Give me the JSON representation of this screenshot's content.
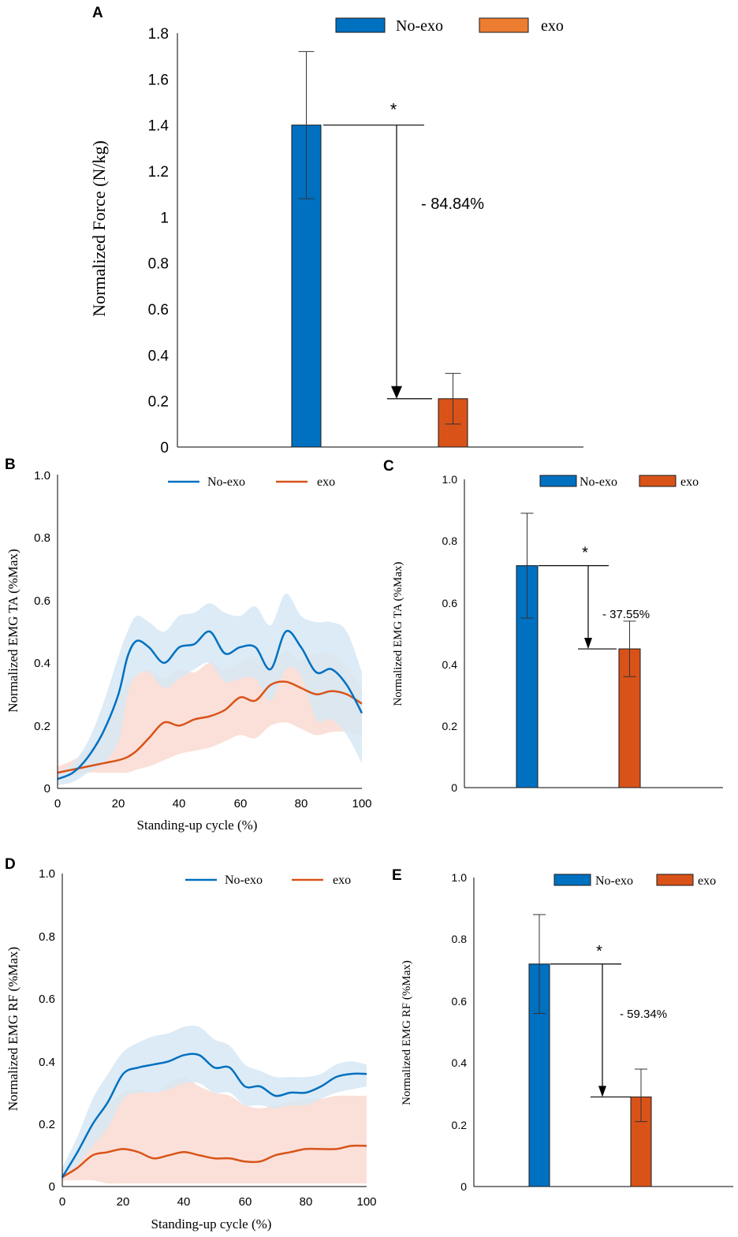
{
  "colors": {
    "no_exo": "#0070C0",
    "exo": "#D95319",
    "no_exo_band": "#d6e8f5",
    "exo_band": "#f9ddd4",
    "overlap_band": "#d7d2da"
  },
  "chart_data": [
    {
      "id": "A",
      "type": "bar",
      "panel_label": "A",
      "ylabel": "Normalized Force (N/kg)",
      "ylim": [
        0,
        1.8
      ],
      "yticks": [
        "0",
        "0.2",
        "0.4",
        "0.6",
        "0.8",
        "1",
        "1.2",
        "1.4",
        "1.6",
        "1.8"
      ],
      "series": [
        {
          "name": "No-exo",
          "value": 1.4,
          "err_low": 1.08,
          "err_high": 1.72
        },
        {
          "name": "exo",
          "value": 0.21,
          "err_low": 0.1,
          "err_high": 0.32
        }
      ],
      "significance": "*",
      "change": "- 84.84%"
    },
    {
      "id": "B",
      "type": "line",
      "panel_label": "B",
      "xlabel": "Standing-up cycle (%)",
      "ylabel": "Normalized EMG TA (%Max)",
      "xlim": [
        0,
        100
      ],
      "ylim": [
        0,
        1.0
      ],
      "xticks": [
        "0",
        "20",
        "40",
        "60",
        "80",
        "100"
      ],
      "yticks": [
        "0",
        "0.2",
        "0.4",
        "0.6",
        "0.8",
        "1.0"
      ],
      "x": [
        0,
        5,
        10,
        15,
        20,
        23,
        26,
        30,
        35,
        40,
        45,
        50,
        55,
        60,
        65,
        70,
        75,
        80,
        85,
        90,
        95,
        100
      ],
      "series": [
        {
          "name": "No-exo",
          "mean": [
            0.03,
            0.05,
            0.1,
            0.18,
            0.3,
            0.42,
            0.47,
            0.45,
            0.4,
            0.45,
            0.46,
            0.5,
            0.43,
            0.45,
            0.45,
            0.38,
            0.5,
            0.45,
            0.37,
            0.38,
            0.33,
            0.24
          ],
          "upper": [
            0.05,
            0.08,
            0.15,
            0.27,
            0.42,
            0.5,
            0.55,
            0.53,
            0.5,
            0.55,
            0.56,
            0.59,
            0.56,
            0.55,
            0.58,
            0.52,
            0.62,
            0.55,
            0.53,
            0.53,
            0.5,
            0.37
          ],
          "lower": [
            0.01,
            0.02,
            0.05,
            0.08,
            0.15,
            0.3,
            0.36,
            0.37,
            0.32,
            0.35,
            0.38,
            0.4,
            0.34,
            0.35,
            0.35,
            0.28,
            0.38,
            0.36,
            0.22,
            0.22,
            0.17,
            0.08
          ]
        },
        {
          "name": "exo",
          "mean": [
            0.05,
            0.06,
            0.07,
            0.08,
            0.09,
            0.1,
            0.12,
            0.16,
            0.21,
            0.2,
            0.22,
            0.23,
            0.25,
            0.29,
            0.28,
            0.33,
            0.34,
            0.32,
            0.3,
            0.31,
            0.3,
            0.27
          ],
          "upper": [
            0.07,
            0.09,
            0.12,
            0.18,
            0.28,
            0.34,
            0.36,
            0.38,
            0.35,
            0.38,
            0.37,
            0.4,
            0.38,
            0.4,
            0.42,
            0.4,
            0.44,
            0.41,
            0.43,
            0.43,
            0.39,
            0.32
          ],
          "lower": [
            0.04,
            0.04,
            0.05,
            0.05,
            0.05,
            0.05,
            0.06,
            0.07,
            0.09,
            0.11,
            0.12,
            0.13,
            0.15,
            0.17,
            0.16,
            0.2,
            0.21,
            0.19,
            0.17,
            0.18,
            0.18,
            0.17
          ]
        }
      ]
    },
    {
      "id": "C",
      "type": "bar",
      "panel_label": "C",
      "ylabel": "Normalized EMG TA (%Max)",
      "ylim": [
        0,
        1.0
      ],
      "yticks": [
        "0",
        "0.2",
        "0.4",
        "0.6",
        "0.8",
        "1.0"
      ],
      "series": [
        {
          "name": "No-exo",
          "value": 0.72,
          "err_low": 0.55,
          "err_high": 0.89
        },
        {
          "name": "exo",
          "value": 0.45,
          "err_low": 0.36,
          "err_high": 0.54
        }
      ],
      "significance": "*",
      "change": "- 37.55%"
    },
    {
      "id": "D",
      "type": "line",
      "panel_label": "D",
      "xlabel": "Standing-up cycle (%)",
      "ylabel": "Normalized EMG RF (%Max)",
      "xlim": [
        0,
        100
      ],
      "ylim": [
        0,
        1.0
      ],
      "xticks": [
        "0",
        "20",
        "40",
        "60",
        "80",
        "100"
      ],
      "yticks": [
        "0",
        "0.2",
        "0.4",
        "0.6",
        "0.8",
        "1.0"
      ],
      "x": [
        0,
        5,
        10,
        15,
        20,
        25,
        30,
        35,
        40,
        45,
        50,
        55,
        60,
        65,
        70,
        75,
        80,
        85,
        90,
        95,
        100
      ],
      "series": [
        {
          "name": "No-exo",
          "mean": [
            0.03,
            0.11,
            0.2,
            0.27,
            0.36,
            0.38,
            0.39,
            0.4,
            0.42,
            0.42,
            0.38,
            0.38,
            0.32,
            0.32,
            0.29,
            0.3,
            0.3,
            0.32,
            0.35,
            0.36,
            0.36
          ],
          "upper": [
            0.06,
            0.16,
            0.28,
            0.36,
            0.43,
            0.46,
            0.48,
            0.49,
            0.51,
            0.51,
            0.47,
            0.45,
            0.39,
            0.37,
            0.35,
            0.35,
            0.35,
            0.36,
            0.39,
            0.4,
            0.39
          ],
          "lower": [
            0.02,
            0.07,
            0.13,
            0.19,
            0.28,
            0.3,
            0.3,
            0.31,
            0.33,
            0.33,
            0.3,
            0.3,
            0.26,
            0.26,
            0.25,
            0.26,
            0.26,
            0.28,
            0.3,
            0.31,
            0.32
          ]
        },
        {
          "name": "exo",
          "mean": [
            0.03,
            0.06,
            0.1,
            0.11,
            0.12,
            0.11,
            0.09,
            0.1,
            0.11,
            0.1,
            0.09,
            0.09,
            0.08,
            0.08,
            0.1,
            0.11,
            0.12,
            0.12,
            0.12,
            0.13,
            0.13
          ],
          "upper": [
            0.04,
            0.1,
            0.2,
            0.26,
            0.3,
            0.31,
            0.3,
            0.33,
            0.35,
            0.32,
            0.3,
            0.29,
            0.26,
            0.25,
            0.26,
            0.27,
            0.28,
            0.28,
            0.29,
            0.29,
            0.29
          ],
          "lower": [
            0.02,
            0.02,
            0.02,
            0.01,
            0.01,
            0.01,
            0.01,
            0.01,
            0.01,
            0.01,
            0.01,
            0.01,
            0.01,
            0.01,
            0.01,
            0.01,
            0.01,
            0.01,
            0.01,
            0.01,
            0.01
          ]
        }
      ]
    },
    {
      "id": "E",
      "type": "bar",
      "panel_label": "E",
      "ylabel": "Normalized EMG RF (%Max)",
      "ylim": [
        0,
        1.0
      ],
      "yticks": [
        "0",
        "0.2",
        "0.4",
        "0.6",
        "0.8",
        "1.0"
      ],
      "series": [
        {
          "name": "No-exo",
          "value": 0.72,
          "err_low": 0.56,
          "err_high": 0.88
        },
        {
          "name": "exo",
          "value": 0.29,
          "err_low": 0.21,
          "err_high": 0.38
        }
      ],
      "significance": "*",
      "change": "- 59.34%"
    }
  ]
}
